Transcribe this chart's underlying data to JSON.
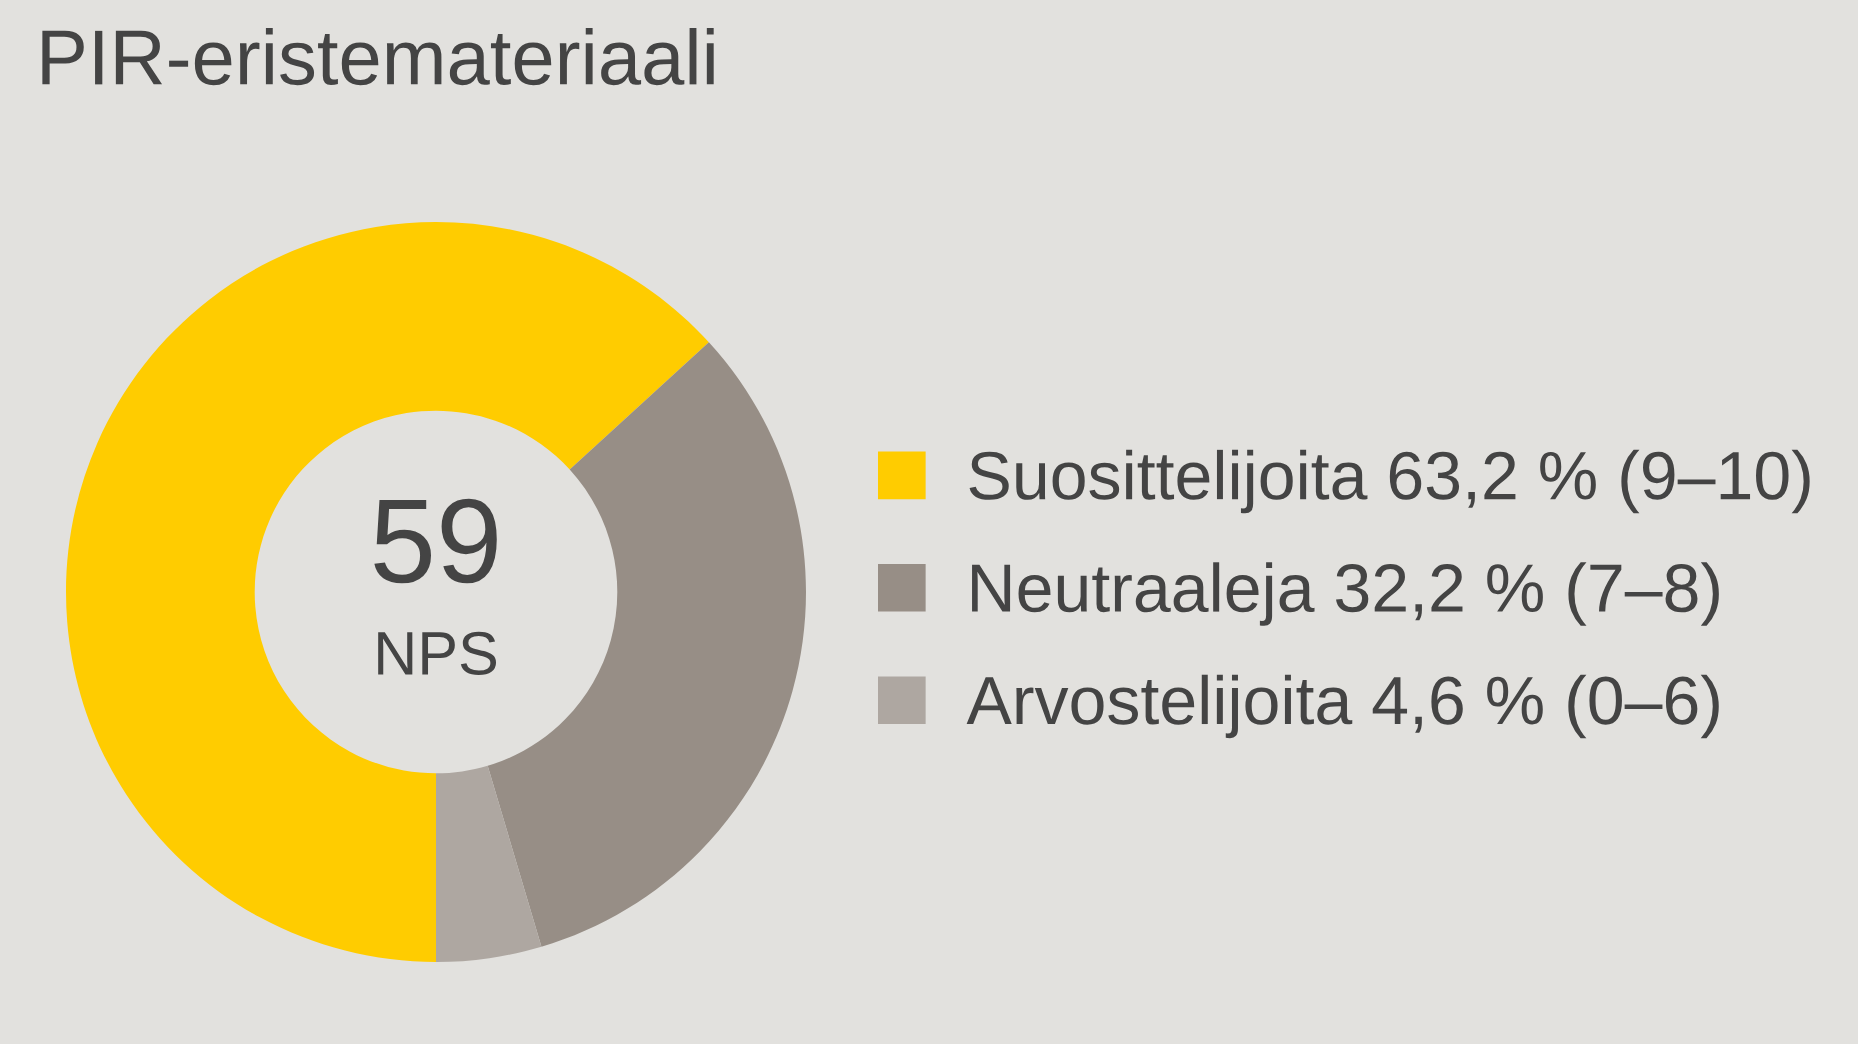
{
  "chart_data": {
    "type": "donut",
    "title": "PIR-eristemateriaali",
    "categories": [
      "Suosittelijoita 63,2 % (9–10)",
      "Neutraaleja 32,2 % (7–8)",
      "Arvostelijoita 4,6 % (0–6)"
    ],
    "values": [
      63.2,
      32.2,
      4.6
    ],
    "colors": [
      "#ffcc00",
      "#978e86",
      "#aea7a1"
    ],
    "legend": "right",
    "annotations": [
      "59",
      "NPS"
    ]
  }
}
